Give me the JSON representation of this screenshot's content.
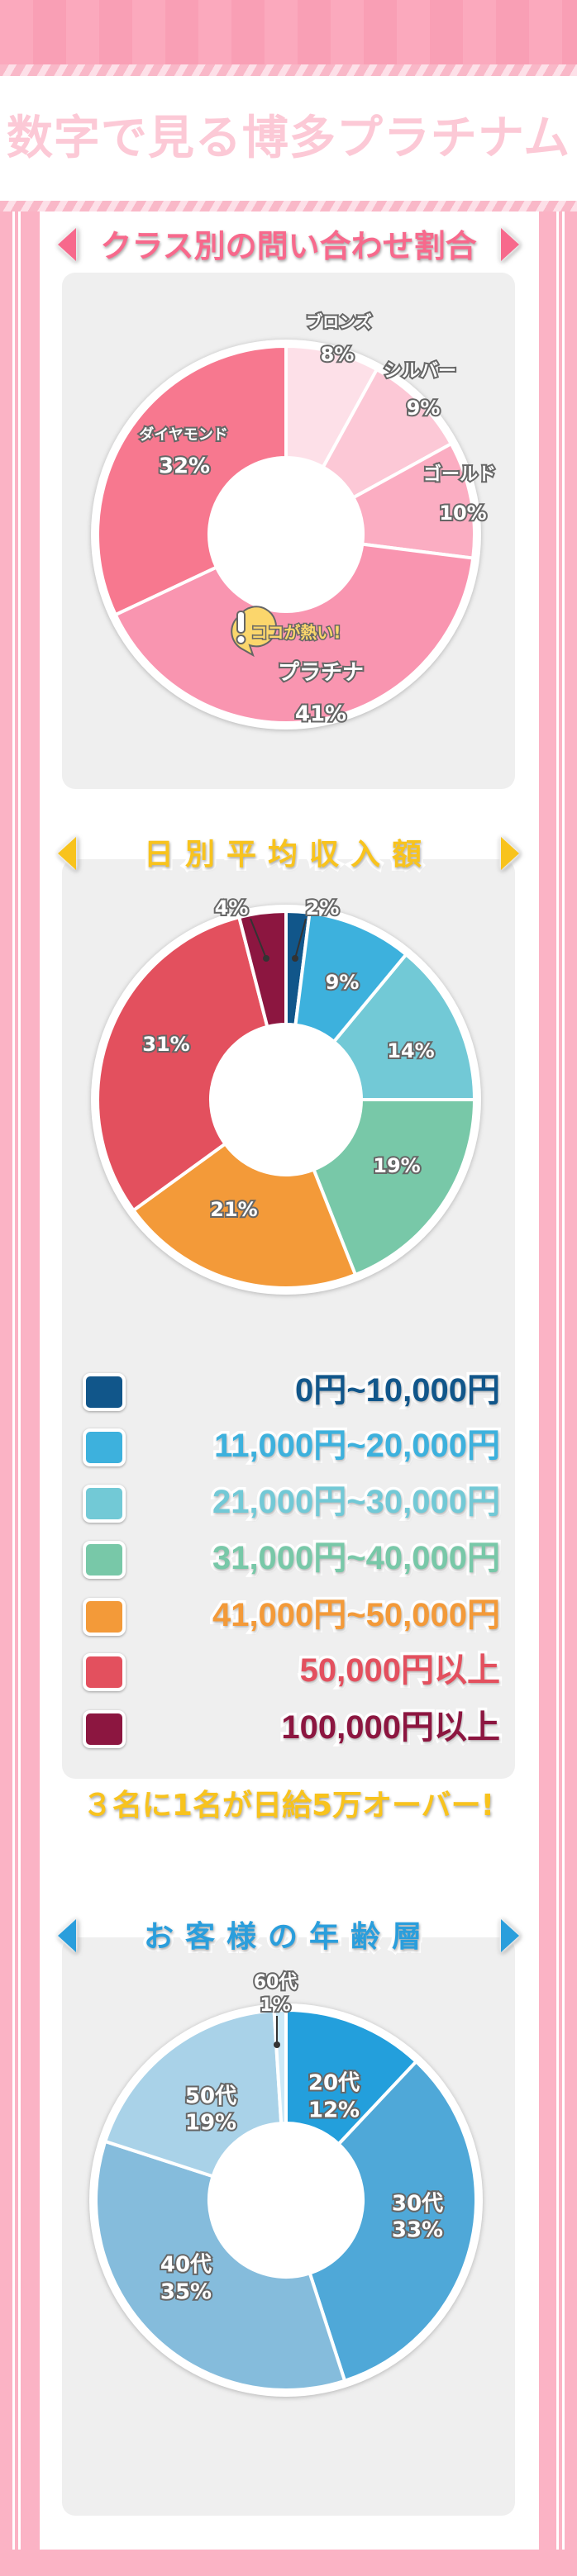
{
  "header": {
    "title": "数字で見る博多プラチナム"
  },
  "colors": {
    "pink_frame": "#fbb3c5",
    "panel": "#efefef"
  },
  "sections": [
    {
      "heading": "クラス別の問い合わせ割合",
      "heading_color": "#f7698c",
      "badge": "ココが熱い!",
      "badge_icon": "exclamation-bubble-icon"
    },
    {
      "heading": "日別平均収入額",
      "heading_color": "#f8c31d",
      "legend": [
        {
          "label": "0円~10,000円",
          "color": "#11568a"
        },
        {
          "label": "11,000円~20,000円",
          "color": "#3db1dd"
        },
        {
          "label": "21,000円~30,000円",
          "color": "#72c9d6"
        },
        {
          "label": "31,000円~40,000円",
          "color": "#78c8a8"
        },
        {
          "label": "41,000円~50,000円",
          "color": "#f39a39"
        },
        {
          "label": "50,000円以上",
          "color": "#e3505e"
        },
        {
          "label": "100,000円以上",
          "color": "#8c1640"
        }
      ],
      "callout": "３名に1名が日給5万オーバー!"
    },
    {
      "heading": "お客様の年齢層",
      "heading_color": "#2a9edc"
    }
  ],
  "chart_data": [
    {
      "type": "pie",
      "donut": true,
      "categories": [
        "ブロンズ",
        "シルバー",
        "ゴールド",
        "プラチナ",
        "ダイヤモンド"
      ],
      "values": [
        8,
        9,
        10,
        41,
        32
      ],
      "labels": [
        "8%",
        "9%",
        "10%",
        "41%",
        "32%"
      ],
      "colors": [
        "#fde0e8",
        "#fcc8d6",
        "#fbadc2",
        "#f995b0",
        "#f7788f"
      ]
    },
    {
      "type": "pie",
      "donut": true,
      "categories": [
        "0円~10,000円",
        "11,000円~20,000円",
        "21,000円~30,000円",
        "31,000円~40,000円",
        "41,000円~50,000円",
        "50,000円以上",
        "100,000円以上"
      ],
      "values": [
        2,
        9,
        14,
        19,
        21,
        31,
        4
      ],
      "labels": [
        "2%",
        "9%",
        "14%",
        "19%",
        "21%",
        "31%",
        "4%"
      ],
      "colors": [
        "#11568a",
        "#3db1dd",
        "#72c9d6",
        "#78c8a8",
        "#f39a39",
        "#e3505e",
        "#8c1640"
      ]
    },
    {
      "type": "pie",
      "donut": true,
      "categories": [
        "20代",
        "30代",
        "40代",
        "50代",
        "60代"
      ],
      "values": [
        12,
        33,
        35,
        19,
        1
      ],
      "labels": [
        "12%",
        "33%",
        "35%",
        "19%",
        "1%"
      ],
      "colors": [
        "#239fdc",
        "#4fa8d8",
        "#85bcdc",
        "#a9d2e8",
        "#cde9f7"
      ]
    }
  ]
}
